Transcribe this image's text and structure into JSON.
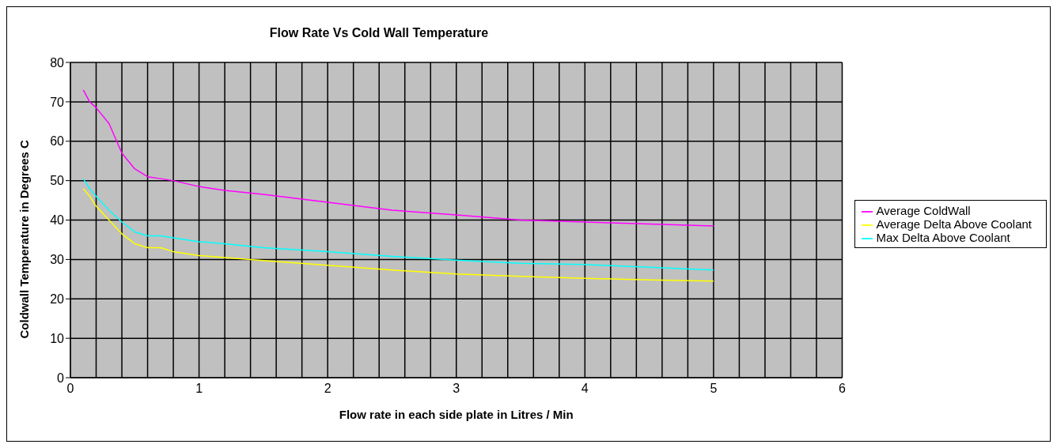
{
  "chart_data": {
    "type": "line",
    "title": "Flow Rate Vs Cold Wall Temperature",
    "xlabel": "Flow rate in each side plate  in Litres / Min",
    "ylabel": "Coldwall Temperature in Degrees C",
    "xlim": [
      0,
      6
    ],
    "ylim": [
      0,
      80
    ],
    "xticks": [
      0,
      {
        "value": 0.2,
        "label": null
      },
      {
        "value": 0.4,
        "label": null
      },
      {
        "value": 0.6,
        "label": null
      },
      {
        "value": 0.8,
        "label": null
      },
      1,
      {
        "value": 1.2,
        "label": null
      },
      {
        "value": 1.4,
        "label": null
      },
      {
        "value": 1.6,
        "label": null
      },
      {
        "value": 1.8,
        "label": null
      },
      2,
      {
        "value": 2.2,
        "label": null
      },
      {
        "value": 2.4,
        "label": null
      },
      {
        "value": 2.6,
        "label": null
      },
      {
        "value": 2.8,
        "label": null
      },
      3,
      {
        "value": 3.2,
        "label": null
      },
      {
        "value": 3.4,
        "label": null
      },
      {
        "value": 3.6,
        "label": null
      },
      {
        "value": 3.8,
        "label": null
      },
      4,
      {
        "value": 4.2,
        "label": null
      },
      {
        "value": 4.4,
        "label": null
      },
      {
        "value": 4.6,
        "label": null
      },
      {
        "value": 4.8,
        "label": null
      },
      5,
      {
        "value": 5.2,
        "label": null
      },
      {
        "value": 5.4,
        "label": null
      },
      {
        "value": 5.6,
        "label": null
      },
      {
        "value": 5.8,
        "label": null
      },
      6
    ],
    "yticks": [
      0,
      10,
      20,
      30,
      40,
      50,
      60,
      70,
      80
    ],
    "x": [
      0.1,
      0.15,
      0.2,
      0.3,
      0.4,
      0.5,
      0.6,
      0.7,
      0.8,
      1,
      1.2,
      1.5,
      2,
      2.5,
      3,
      3.5,
      4,
      4.5,
      5
    ],
    "series": [
      {
        "name": "Average ColdWall",
        "color": "#ff00ff",
        "values": [
          73,
          70,
          68.5,
          64.5,
          57,
          53,
          51,
          50.5,
          50,
          48.5,
          47.5,
          46.5,
          44.5,
          42.5,
          41.3,
          40,
          39.5,
          39,
          38.5
        ]
      },
      {
        "name": "Average Delta Above Coolant",
        "color": "#ffff00",
        "values": [
          48,
          46,
          43.5,
          40,
          36.5,
          34,
          33,
          33,
          32,
          31,
          30.5,
          29.7,
          28.5,
          27.3,
          26.3,
          25.7,
          25.2,
          24.8,
          24.5
        ]
      },
      {
        "name": "Max Delta Above Coolant",
        "color": "#00ffff",
        "values": [
          50.5,
          48,
          46,
          42.5,
          39.5,
          37,
          36,
          36,
          35.5,
          34.5,
          34,
          33,
          32,
          30.8,
          29.8,
          29,
          28.7,
          28,
          27.3
        ]
      }
    ],
    "grid": true,
    "legend": "right",
    "marker": "none",
    "line_style": "solid"
  }
}
